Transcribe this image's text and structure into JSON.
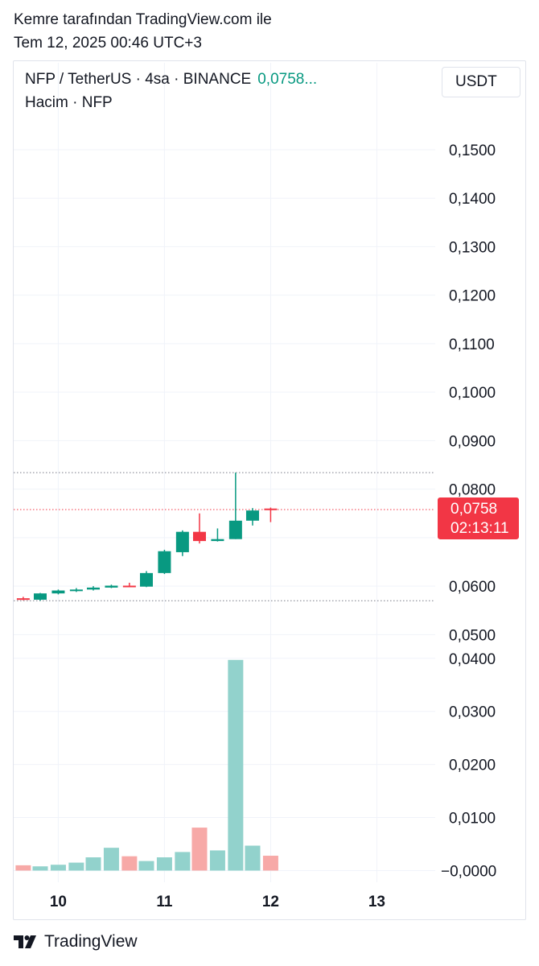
{
  "header": {
    "author": "Kemre tarafından TradingView.com ile",
    "datetime": "Tem 12, 2025 00:46 UTC+3"
  },
  "legend": {
    "symbol": "NFP / TetherUS · 4sa · BINANCE",
    "last_value": "0,0758...",
    "volume_label": "Hacim · NFP"
  },
  "currency_button": "USDT",
  "footer": {
    "brand": "TradingView",
    "logo_icon": "tradingview-logo-icon"
  },
  "colors": {
    "up": "#089981",
    "down": "#f23645",
    "volume_up": "#92d2cc",
    "volume_down": "#f7a9a7"
  },
  "chart_data": {
    "type": "candlestick",
    "price_axis": {
      "ylim": [
        0.0484,
        0.1563
      ],
      "ticks": [
        0.15,
        0.14,
        0.13,
        0.12,
        0.11,
        0.1,
        0.09,
        0.08,
        0.06,
        0.05
      ],
      "tick_labels": [
        "0,1500",
        "0,1400",
        "0,1300",
        "0,1200",
        "0,1100",
        "0,1000",
        "0,0900",
        "0,0800",
        "0,0600",
        "0,0500"
      ]
    },
    "volume_axis": {
      "ylim": [
        -0.0019,
        0.043
      ],
      "ticks": [
        0.04,
        0.03,
        0.02,
        0.01,
        0
      ],
      "tick_labels": [
        "0,0400",
        "0,0300",
        "0,0200",
        "0,0100",
        "−0,0000"
      ]
    },
    "x_axis": {
      "xlim": [
        9.58,
        13.55
      ],
      "ticks": [
        10,
        11,
        12,
        13
      ],
      "tick_labels": [
        "10",
        "11",
        "12",
        "13"
      ]
    },
    "candles": [
      {
        "t": 9.67,
        "o": 0.0575,
        "h": 0.0578,
        "l": 0.0571,
        "c": 0.0572
      },
      {
        "t": 9.83,
        "o": 0.0572,
        "h": 0.0586,
        "l": 0.057,
        "c": 0.0585
      },
      {
        "t": 10.0,
        "o": 0.0585,
        "h": 0.0593,
        "l": 0.0583,
        "c": 0.0591
      },
      {
        "t": 10.17,
        "o": 0.0591,
        "h": 0.0596,
        "l": 0.0588,
        "c": 0.0593
      },
      {
        "t": 10.33,
        "o": 0.0593,
        "h": 0.06,
        "l": 0.0591,
        "c": 0.0597
      },
      {
        "t": 10.5,
        "o": 0.0597,
        "h": 0.0603,
        "l": 0.0596,
        "c": 0.0601
      },
      {
        "t": 10.67,
        "o": 0.0601,
        "h": 0.0607,
        "l": 0.0598,
        "c": 0.0599
      },
      {
        "t": 10.83,
        "o": 0.0599,
        "h": 0.0631,
        "l": 0.0598,
        "c": 0.0627
      },
      {
        "t": 11.0,
        "o": 0.0627,
        "h": 0.0675,
        "l": 0.0625,
        "c": 0.0672
      },
      {
        "t": 11.17,
        "o": 0.067,
        "h": 0.0715,
        "l": 0.0662,
        "c": 0.0712
      },
      {
        "t": 11.33,
        "o": 0.0712,
        "h": 0.075,
        "l": 0.0688,
        "c": 0.0693
      },
      {
        "t": 11.5,
        "o": 0.0693,
        "h": 0.0719,
        "l": 0.0692,
        "c": 0.0697
      },
      {
        "t": 11.67,
        "o": 0.0697,
        "h": 0.0834,
        "l": 0.0697,
        "c": 0.0735
      },
      {
        "t": 11.83,
        "o": 0.0735,
        "h": 0.0761,
        "l": 0.0725,
        "c": 0.0756
      },
      {
        "t": 12.0,
        "o": 0.076,
        "h": 0.0762,
        "l": 0.0732,
        "c": 0.0758
      }
    ],
    "volume": [
      {
        "t": 9.67,
        "v": 0.001,
        "dir": "down"
      },
      {
        "t": 9.83,
        "v": 0.0008,
        "dir": "up"
      },
      {
        "t": 10.0,
        "v": 0.0011,
        "dir": "up"
      },
      {
        "t": 10.17,
        "v": 0.0015,
        "dir": "up"
      },
      {
        "t": 10.33,
        "v": 0.0025,
        "dir": "up"
      },
      {
        "t": 10.5,
        "v": 0.0043,
        "dir": "up"
      },
      {
        "t": 10.67,
        "v": 0.0027,
        "dir": "down"
      },
      {
        "t": 10.83,
        "v": 0.0018,
        "dir": "up"
      },
      {
        "t": 11.0,
        "v": 0.0025,
        "dir": "up"
      },
      {
        "t": 11.17,
        "v": 0.0035,
        "dir": "up"
      },
      {
        "t": 11.33,
        "v": 0.0081,
        "dir": "down"
      },
      {
        "t": 11.5,
        "v": 0.0038,
        "dir": "up"
      },
      {
        "t": 11.67,
        "v": 0.0397,
        "dir": "up"
      },
      {
        "t": 11.83,
        "v": 0.0047,
        "dir": "up"
      },
      {
        "t": 12.0,
        "v": 0.0028,
        "dir": "down"
      }
    ],
    "high_line": 0.0834,
    "low_line": 0.057,
    "current_price": {
      "value": 0.0758,
      "label": "0,0758",
      "countdown": "02:13:11"
    }
  }
}
